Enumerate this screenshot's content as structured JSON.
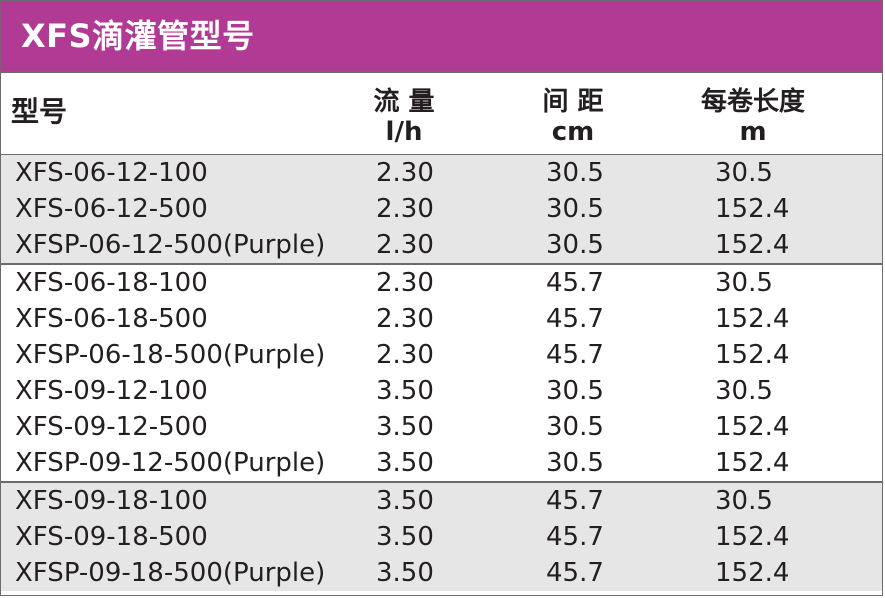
{
  "title": "XFS滴灌管型号",
  "headers": {
    "model": "型号",
    "flow": "流 量",
    "flow_unit": "l/h",
    "spacing": "间 距",
    "spacing_unit": "cm",
    "length": "每卷长度",
    "length_unit": "m"
  },
  "groups": [
    {
      "shaded": true,
      "rows": [
        {
          "model": "XFS-06-12-100",
          "flow": "2.30",
          "spacing": "30.5",
          "length": "30.5"
        },
        {
          "model": "XFS-06-12-500",
          "flow": "2.30",
          "spacing": "30.5",
          "length": "152.4"
        },
        {
          "model": "XFSP-06-12-500(Purple)",
          "flow": "2.30",
          "spacing": "30.5",
          "length": "152.4"
        }
      ]
    },
    {
      "shaded": false,
      "rows": [
        {
          "model": "XFS-06-18-100",
          "flow": "2.30",
          "spacing": "45.7",
          "length": "30.5"
        },
        {
          "model": "XFS-06-18-500",
          "flow": "2.30",
          "spacing": "45.7",
          "length": "152.4"
        },
        {
          "model": "XFSP-06-18-500(Purple)",
          "flow": "2.30",
          "spacing": "45.7",
          "length": "152.4"
        },
        {
          "model": "XFS-09-12-100",
          "flow": "3.50",
          "spacing": "30.5",
          "length": "30.5"
        },
        {
          "model": "XFS-09-12-500",
          "flow": "3.50",
          "spacing": "30.5",
          "length": "152.4"
        },
        {
          "model": "XFSP-09-12-500(Purple)",
          "flow": "3.50",
          "spacing": "30.5",
          "length": "152.4"
        }
      ]
    },
    {
      "shaded": true,
      "rows": [
        {
          "model": "XFS-09-18-100",
          "flow": "3.50",
          "spacing": "45.7",
          "length": "30.5"
        },
        {
          "model": "XFS-09-18-500",
          "flow": "3.50",
          "spacing": "45.7",
          "length": "152.4"
        },
        {
          "model": "XFSP-09-18-500(Purple)",
          "flow": "3.50",
          "spacing": "45.7",
          "length": "152.4"
        }
      ]
    }
  ],
  "colors": {
    "title_bar": "#b03a94",
    "shaded_row": "#e6e6e7",
    "text": "#231f20"
  }
}
